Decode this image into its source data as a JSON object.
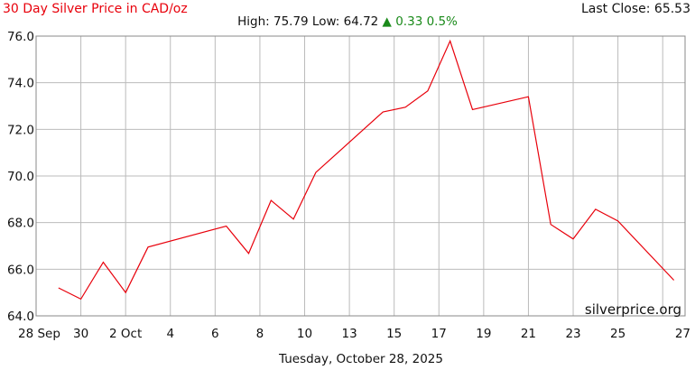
{
  "header": {
    "title": "30 Day Silver Price in CAD/oz",
    "last_close": "Last Close: 65.53",
    "high_low": "High: 75.79 Low: 64.72",
    "change": "▲ 0.33 0.5%"
  },
  "footer": {
    "date": "Tuesday, October 28, 2025",
    "watermark": "silverprice.org"
  },
  "colors": {
    "line": "#e8000b",
    "title": "#e8000b",
    "change_positive": "#1a8a1a",
    "grid": "#bbbbbb"
  },
  "chart_data": {
    "type": "line",
    "title": "30 Day Silver Price in CAD/oz",
    "xlabel": "",
    "ylabel": "",
    "ylim": [
      64.0,
      76.0
    ],
    "xlim": [
      0,
      29
    ],
    "grid": true,
    "y_ticks": [
      "64.0",
      "66.0",
      "68.0",
      "70.0",
      "72.0",
      "74.0",
      "76.0"
    ],
    "x_tick_labels": [
      "28 Sep",
      "30",
      "2 Oct",
      "4",
      "6",
      "8",
      "10",
      "13",
      "15",
      "17",
      "19",
      "21",
      "23",
      "25",
      "27"
    ],
    "series": [
      {
        "x": [
          1.0,
          2.0,
          3.0,
          4.0,
          5.0,
          8.5,
          9.5,
          10.5,
          11.5,
          12.5,
          15.5,
          16.5,
          17.5,
          18.5,
          19.5,
          22.0,
          23.0,
          24.0,
          25.0,
          26.0,
          28.5
        ],
        "values": [
          65.2,
          64.72,
          66.3,
          65.0,
          66.95,
          67.85,
          66.68,
          68.95,
          68.15,
          70.15,
          72.75,
          72.95,
          73.65,
          75.79,
          72.85,
          73.4,
          67.92,
          67.3,
          68.57,
          68.07,
          65.53
        ]
      }
    ]
  }
}
